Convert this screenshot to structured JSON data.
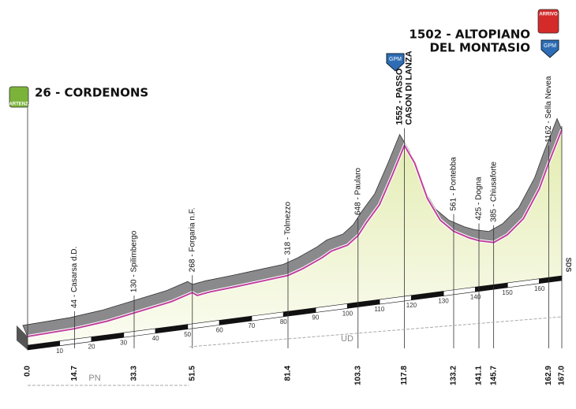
{
  "chart_data": {
    "type": "area",
    "start_label": "26 - CORDENONS",
    "finish_label": [
      "1502 - ALTOPIANO",
      "DEL MONTASIO"
    ],
    "x": [
      0,
      14.7,
      25,
      33.3,
      45,
      51.5,
      53,
      57,
      65,
      72,
      81.4,
      86,
      92,
      95,
      100,
      103.3,
      106,
      110,
      114,
      117.8,
      121,
      125,
      129,
      133.2,
      138,
      141.1,
      145.7,
      150,
      155,
      160,
      162.9,
      167
    ],
    "values": [
      26,
      44,
      80,
      130,
      200,
      268,
      230,
      250,
      270,
      290,
      318,
      370,
      460,
      520,
      560,
      648,
      780,
      950,
      1250,
      1552,
      1350,
      950,
      700,
      561,
      470,
      425,
      385,
      450,
      600,
      900,
      1162,
      1502
    ],
    "xlim": [
      0,
      167
    ],
    "ylim": [
      0,
      1600
    ],
    "xticks": [
      10,
      20,
      30,
      40,
      50,
      60,
      70,
      80,
      90,
      100,
      110,
      120,
      130,
      140,
      150,
      160
    ],
    "markers": [
      {
        "label": [
          "44 - Casarsa d.D."
        ],
        "km": 14.7
      },
      {
        "label": [
          "130 - Spilimbergo"
        ],
        "km": 33.3
      },
      {
        "label": [
          "268 - Forgaria n.F."
        ],
        "km": 51.5
      },
      {
        "label": [
          "318 - Tolmezzo"
        ],
        "km": 81.4
      },
      {
        "label": [
          "648 - Paularo"
        ],
        "km": 103.3
      },
      {
        "label": [
          "1552 - PASSO",
          "CASON DI LANZA"
        ],
        "km": 117.8
      },
      {
        "label": [
          "561 - Pontebba"
        ],
        "km": 133.2
      },
      {
        "label": [
          "425 - Dogna"
        ],
        "km": 141.1
      },
      {
        "label": [
          "385 - Chiusaforte"
        ],
        "km": 145.7
      },
      {
        "label": [
          "1162 - Sella Nevea"
        ],
        "km": 162.9
      }
    ],
    "start_km": {
      "value": 0,
      "label": "0.0"
    },
    "finish_km": {
      "value": 167,
      "label": "167.0"
    },
    "regions": [
      "PN",
      "UD",
      "SDS"
    ],
    "icons": [
      "PARTENZA",
      "GPM",
      "GPM",
      "ARRIVO"
    ],
    "color": "#c0409a"
  }
}
